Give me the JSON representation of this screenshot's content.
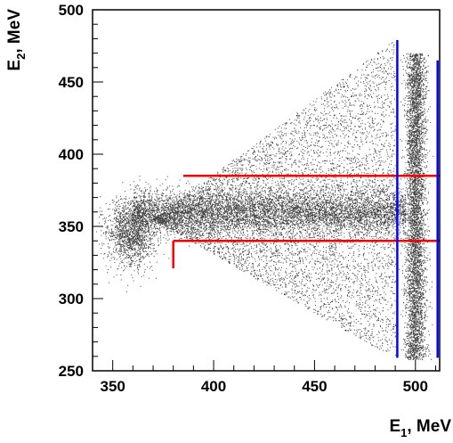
{
  "chart_data": {
    "type": "scatter",
    "xlabel": {
      "main": "E",
      "sub": "1",
      "rest": ", MeV"
    },
    "ylabel": {
      "main": "E",
      "sub": "2",
      "rest": ", MeV"
    },
    "xlim": [
      340,
      512
    ],
    "ylim": [
      250,
      500
    ],
    "xticks": [
      350,
      400,
      450,
      500
    ],
    "yticks": [
      250,
      300,
      350,
      400,
      450,
      500
    ],
    "point_color": "#000000",
    "density_regions": [
      {
        "name": "band",
        "x_range": [
          360,
          495
        ],
        "y_center": 360,
        "y_width": 8
      },
      {
        "name": "left-blob",
        "x_center": 359,
        "y_center": 346,
        "x_width": 6,
        "y_width": 12
      },
      {
        "name": "vertical-stripe",
        "x_center": 500,
        "x_width": 2.5,
        "y_range": [
          258,
          470
        ]
      },
      {
        "name": "triangle",
        "vertices": [
          [
            370,
            355
          ],
          [
            490,
            480
          ],
          [
            490,
            258
          ]
        ]
      }
    ],
    "selection_lines": [
      {
        "name": "red-upper-horizontal",
        "color": "#ff0000",
        "points": [
          [
            385,
            385
          ],
          [
            512,
            385
          ]
        ]
      },
      {
        "name": "red-lower-horizontal",
        "color": "#ff0000",
        "points": [
          [
            380,
            340
          ],
          [
            512,
            340
          ]
        ]
      },
      {
        "name": "red-lower-vertical",
        "color": "#ff0000",
        "points": [
          [
            380,
            340
          ],
          [
            380,
            321
          ]
        ]
      },
      {
        "name": "blue-left-vertical",
        "color": "#0000ff",
        "points": [
          [
            491,
            259
          ],
          [
            491,
            479
          ]
        ]
      },
      {
        "name": "blue-right-vertical",
        "color": "#0000ff",
        "points": [
          [
            511,
            259
          ],
          [
            511,
            465
          ]
        ]
      }
    ]
  }
}
